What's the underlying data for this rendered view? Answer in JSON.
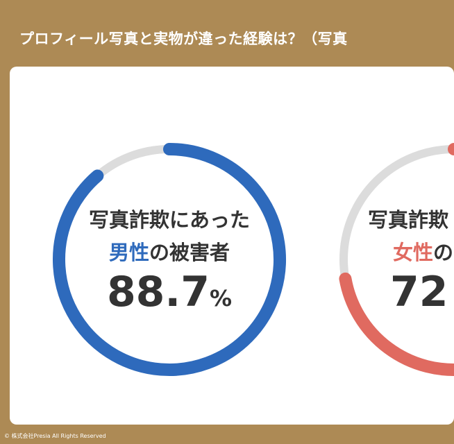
{
  "title": "プロフィール写真と実物が違った経験は？（写真",
  "copyright": "© 株式会社Presia All Rights Reserved",
  "colors": {
    "background": "#ad8a55",
    "male": "#2e6abc",
    "female": "#e06a60",
    "track": "#dcdcdc"
  },
  "chart_data": [
    {
      "type": "pie",
      "line1": "写真詐欺にあった",
      "gender": "男性",
      "suffix": "の被害者",
      "value_text": "88.7",
      "unit": "%",
      "value": 88.7
    },
    {
      "type": "pie",
      "line1": "写真詐欺",
      "gender": "女性",
      "suffix": "の",
      "value_text": "72",
      "unit": "",
      "value": 72.2
    }
  ]
}
